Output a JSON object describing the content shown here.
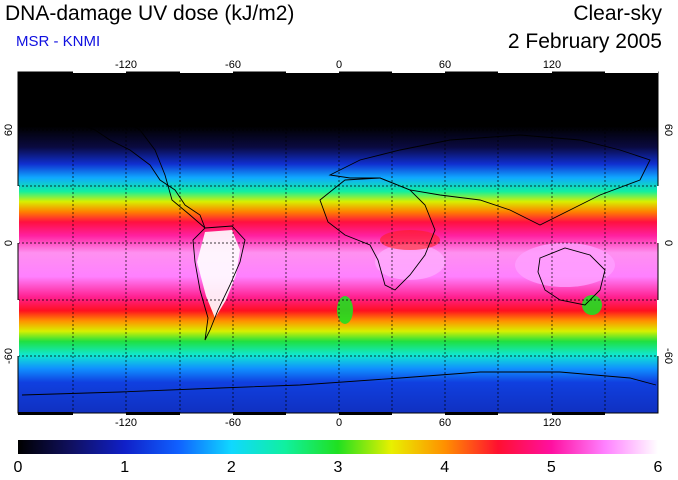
{
  "header": {
    "title": "DNA-damage UV dose (kJ/m2)",
    "source": "MSR - KNMI",
    "sky_condition": "Clear-sky",
    "date": "2 February 2005"
  },
  "colors": {
    "source_text": "#1010e0",
    "scale": [
      "#000000",
      "#101060",
      "#1020c8",
      "#1060ff",
      "#10d8ff",
      "#10f0a0",
      "#20e020",
      "#e8f000",
      "#ff9000",
      "#ff1030",
      "#ff10a0",
      "#ff80ff",
      "#ffffff"
    ]
  },
  "map": {
    "longitude_ticks": [
      "-120",
      "-60",
      "0",
      "60",
      "120"
    ],
    "latitude_ticks_left": [
      "60",
      "0",
      "-60"
    ],
    "latitude_ticks_right": [
      "60",
      "0",
      "-60"
    ]
  },
  "colorbar": {
    "min": 0,
    "max": 6,
    "labels": [
      "0",
      "1",
      "2",
      "3",
      "4",
      "5",
      "6"
    ]
  }
}
